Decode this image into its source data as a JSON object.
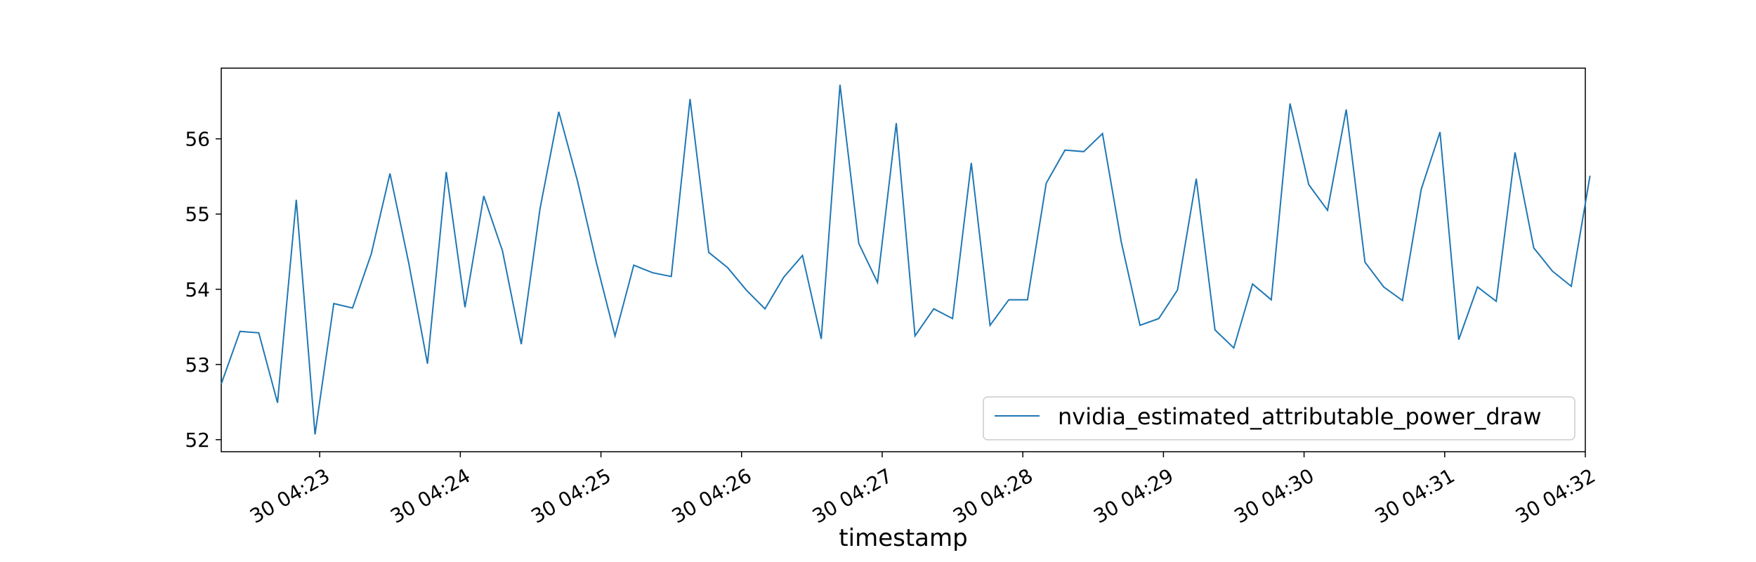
{
  "chart_data": {
    "type": "line",
    "title": "",
    "xlabel": "timestamp",
    "ylabel": "",
    "xlim": [
      0,
      582
    ],
    "ylim": [
      51.84,
      56.94
    ],
    "x_ticks": [
      {
        "x": 42,
        "label": "30 04:23"
      },
      {
        "x": 102,
        "label": "30 04:24"
      },
      {
        "x": 162,
        "label": "30 04:25"
      },
      {
        "x": 222,
        "label": "30 04:26"
      },
      {
        "x": 282,
        "label": "30 04:27"
      },
      {
        "x": 342,
        "label": "30 04:28"
      },
      {
        "x": 402,
        "label": "30 04:29"
      },
      {
        "x": 462,
        "label": "30 04:30"
      },
      {
        "x": 522,
        "label": "30 04:31"
      },
      {
        "x": 582,
        "label": "30 04:32"
      }
    ],
    "y_ticks": [
      52,
      53,
      54,
      55,
      56
    ],
    "grid": false,
    "legend_position": "lower-right",
    "series": [
      {
        "name": "nvidia_estimated_attributable_power_draw",
        "color": "#1f77b4",
        "points": [
          [
            0,
            52.74
          ],
          [
            8,
            53.44
          ],
          [
            16,
            53.42
          ],
          [
            24,
            52.49
          ],
          [
            32,
            55.19
          ],
          [
            40,
            52.07
          ],
          [
            48,
            53.81
          ],
          [
            56,
            53.75
          ],
          [
            64,
            54.47
          ],
          [
            72,
            55.54
          ],
          [
            80,
            54.35
          ],
          [
            88,
            53.01
          ],
          [
            96,
            55.56
          ],
          [
            104,
            53.76
          ],
          [
            112,
            55.24
          ],
          [
            120,
            54.51
          ],
          [
            128,
            53.27
          ],
          [
            136,
            55.07
          ],
          [
            144,
            56.36
          ],
          [
            152,
            55.44
          ],
          [
            160,
            54.36
          ],
          [
            168,
            53.38
          ],
          [
            176,
            54.32
          ],
          [
            184,
            54.22
          ],
          [
            192,
            54.17
          ],
          [
            200,
            56.53
          ],
          [
            208,
            54.49
          ],
          [
            216,
            54.29
          ],
          [
            224,
            53.99
          ],
          [
            232,
            53.74
          ],
          [
            240,
            54.16
          ],
          [
            248,
            54.45
          ],
          [
            256,
            53.34
          ],
          [
            264,
            56.72
          ],
          [
            272,
            54.61
          ],
          [
            280,
            54.09
          ],
          [
            288,
            56.21
          ],
          [
            296,
            53.38
          ],
          [
            304,
            53.74
          ],
          [
            312,
            53.61
          ],
          [
            320,
            55.68
          ],
          [
            328,
            53.52
          ],
          [
            336,
            53.86
          ],
          [
            344,
            53.86
          ],
          [
            352,
            55.41
          ],
          [
            360,
            55.85
          ],
          [
            368,
            55.83
          ],
          [
            376,
            56.07
          ],
          [
            384,
            54.63
          ],
          [
            392,
            53.52
          ],
          [
            400,
            53.61
          ],
          [
            408,
            53.99
          ],
          [
            416,
            55.47
          ],
          [
            424,
            53.46
          ],
          [
            432,
            53.22
          ],
          [
            440,
            54.07
          ],
          [
            448,
            53.86
          ],
          [
            456,
            56.47
          ],
          [
            464,
            55.39
          ],
          [
            472,
            55.05
          ],
          [
            480,
            56.39
          ],
          [
            488,
            54.36
          ],
          [
            496,
            54.03
          ],
          [
            504,
            53.85
          ],
          [
            512,
            55.33
          ],
          [
            520,
            56.09
          ],
          [
            528,
            53.33
          ],
          [
            536,
            54.03
          ],
          [
            544,
            53.84
          ],
          [
            552,
            55.82
          ],
          [
            560,
            54.55
          ],
          [
            568,
            54.24
          ],
          [
            576,
            54.04
          ],
          [
            584,
            55.51
          ]
        ]
      }
    ]
  }
}
